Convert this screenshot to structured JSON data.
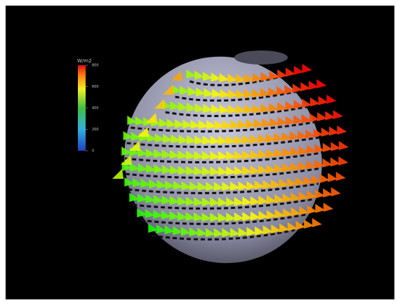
{
  "colorbar": {
    "title": "W/m2",
    "range": [
      0,
      800
    ],
    "ticks": [
      0,
      200,
      400,
      600,
      800
    ]
  }
}
